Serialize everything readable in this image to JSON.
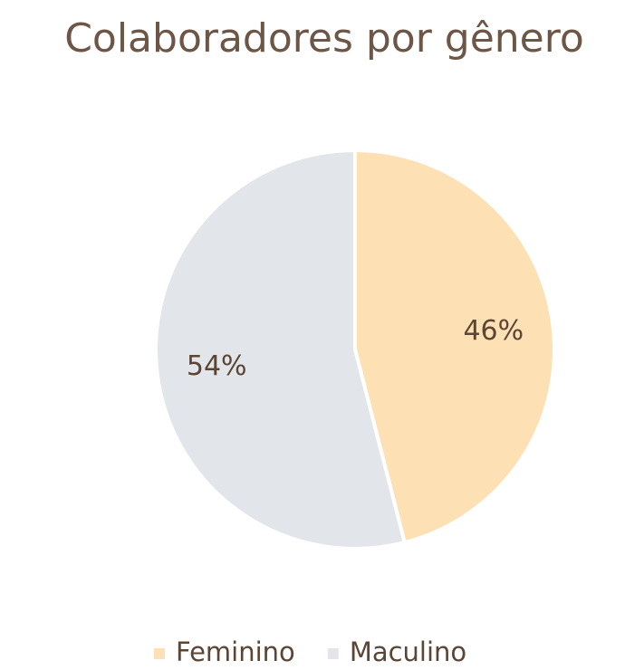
{
  "chart_data": {
    "type": "pie",
    "title": "Colaboradores por gênero",
    "categories": [
      "Feminino",
      "Maculino"
    ],
    "values": [
      46,
      54
    ],
    "value_labels": [
      "46%",
      "54%"
    ],
    "colors": [
      "#fde0b3",
      "#e2e5ea"
    ],
    "legend": "bottom"
  }
}
